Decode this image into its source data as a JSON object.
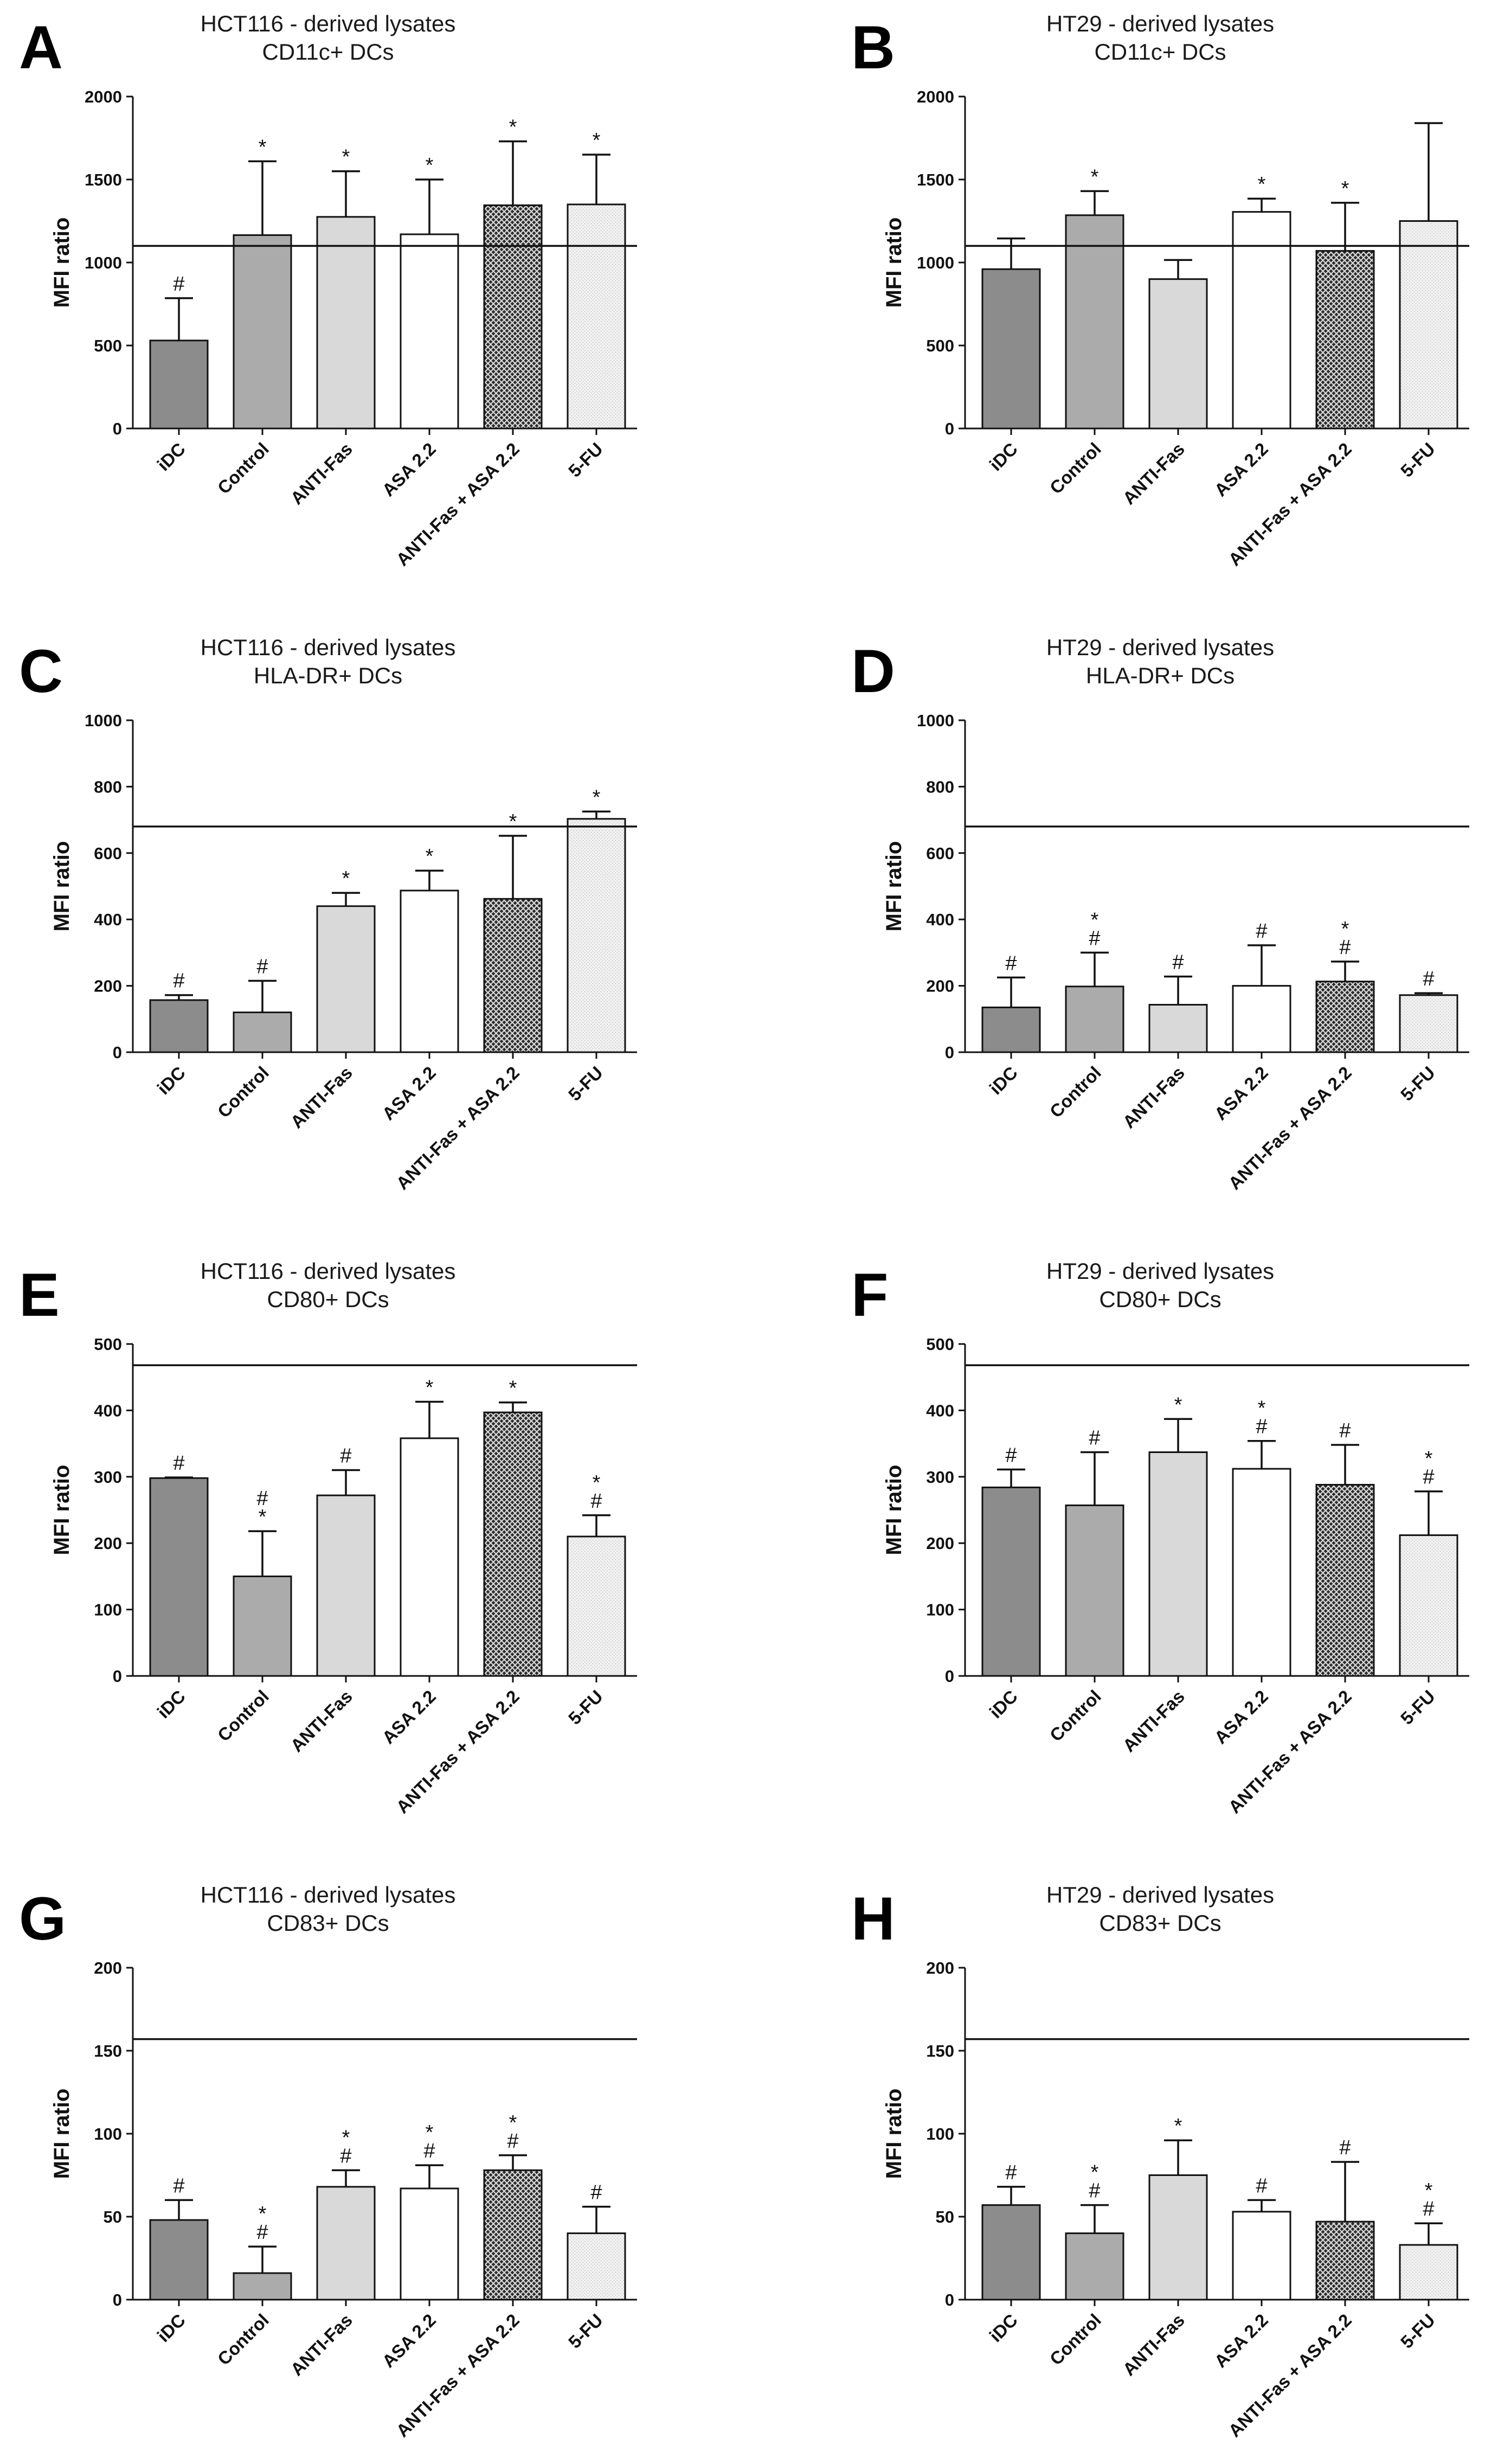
{
  "colors": {
    "idc": "#8c8c8c",
    "control": "#ababab",
    "antifas": "#d9d9d9",
    "asa": "#ffffff",
    "combo": "#1f1f1f",
    "fu": "#ececec",
    "axis": "#111111"
  },
  "chart_data": [
    {
      "panel": "A",
      "type": "bar",
      "title": "HCT116 - derived lysates",
      "subtitle": "CD11c+ DCs",
      "ylabel": "MFI ratio",
      "ylim": [
        0,
        2000
      ],
      "yticks": [
        0,
        500,
        1000,
        1500,
        2000
      ],
      "reference_line": 1100,
      "categories": [
        "iDC",
        "Control",
        "ANTI-Fas",
        "ASA  2.2",
        "ANTI-Fas + ASA 2.2",
        "5-FU"
      ],
      "values": [
        530,
        1165,
        1275,
        1170,
        1345,
        1350
      ],
      "errors": [
        255,
        445,
        275,
        330,
        385,
        300
      ],
      "marks": [
        [
          "#"
        ],
        [
          "*"
        ],
        [
          "*"
        ],
        [
          "*"
        ],
        [
          "*"
        ],
        [
          "*"
        ]
      ]
    },
    {
      "panel": "B",
      "type": "bar",
      "title": "HT29 - derived lysates",
      "subtitle": "CD11c+ DCs",
      "ylabel": "MFI ratio",
      "ylim": [
        0,
        2000
      ],
      "yticks": [
        0,
        500,
        1000,
        1500,
        2000
      ],
      "reference_line": 1100,
      "categories": [
        "iDC",
        "Control",
        "ANTI-Fas",
        "ASA  2.2",
        "ANTI-Fas + ASA 2.2",
        "5-FU"
      ],
      "values": [
        960,
        1285,
        900,
        1305,
        1070,
        1250
      ],
      "errors": [
        185,
        145,
        115,
        80,
        290,
        590
      ],
      "marks": [
        [],
        [
          "*"
        ],
        [],
        [
          "*"
        ],
        [
          "*"
        ],
        []
      ]
    },
    {
      "panel": "C",
      "type": "bar",
      "title": "HCT116 - derived lysates",
      "subtitle": "HLA-DR+ DCs",
      "ylabel": "MFI ratio",
      "ylim": [
        0,
        1000
      ],
      "yticks": [
        0,
        200,
        400,
        600,
        800,
        1000
      ],
      "reference_line": 680,
      "categories": [
        "iDC",
        "Control",
        "ANTI-Fas",
        "ASA  2.2",
        "ANTI-Fas + ASA 2.2",
        "5-FU"
      ],
      "values": [
        157,
        120,
        440,
        487,
        462,
        703
      ],
      "errors": [
        15,
        95,
        40,
        60,
        190,
        22
      ],
      "marks": [
        [
          "#"
        ],
        [
          "#"
        ],
        [
          "*"
        ],
        [
          "*"
        ],
        [
          "*"
        ],
        [
          "*"
        ]
      ]
    },
    {
      "panel": "D",
      "type": "bar",
      "title": "HT29 - derived lysates",
      "subtitle": "HLA-DR+ DCs",
      "ylabel": "MFI ratio",
      "ylim": [
        0,
        1000
      ],
      "yticks": [
        0,
        200,
        400,
        600,
        800,
        1000
      ],
      "reference_line": 680,
      "categories": [
        "iDC",
        "Control",
        "ANTI-Fas",
        "ASA  2.2",
        "ANTI-Fas + ASA 2.2",
        "5-FU"
      ],
      "values": [
        135,
        198,
        143,
        200,
        213,
        172
      ],
      "errors": [
        90,
        102,
        85,
        122,
        60,
        6
      ],
      "marks": [
        [
          "#"
        ],
        [
          "*",
          "#"
        ],
        [
          "#"
        ],
        [
          "#"
        ],
        [
          "*",
          "#"
        ],
        [
          "#"
        ]
      ]
    },
    {
      "panel": "E",
      "type": "bar",
      "title": "HCT116 - derived lysates",
      "subtitle": "CD80+ DCs",
      "ylabel": "MFI ratio",
      "ylim": [
        0,
        500
      ],
      "yticks": [
        0,
        100,
        200,
        300,
        400,
        500
      ],
      "reference_line": 468,
      "categories": [
        "iDC",
        "Control",
        "ANTI-Fas",
        "ASA  2.2",
        "ANTI-Fas + ASA 2.2",
        "5-FU"
      ],
      "values": [
        298,
        150,
        272,
        358,
        397,
        210
      ],
      "errors": [
        1,
        68,
        38,
        55,
        15,
        32
      ],
      "marks": [
        [
          "#"
        ],
        [
          "#",
          "*"
        ],
        [
          "#"
        ],
        [
          "*"
        ],
        [
          "*"
        ],
        [
          "*",
          "#"
        ]
      ]
    },
    {
      "panel": "F",
      "type": "bar",
      "title": "HT29 - derived lysates",
      "subtitle": "CD80+ DCs",
      "ylabel": "MFI ratio",
      "ylim": [
        0,
        500
      ],
      "yticks": [
        0,
        100,
        200,
        300,
        400,
        500
      ],
      "reference_line": 468,
      "categories": [
        "iDC",
        "Control",
        "ANTI-Fas",
        "ASA  2.2",
        "ANTI-Fas + ASA 2.2",
        "5-FU"
      ],
      "values": [
        284,
        257,
        337,
        312,
        288,
        212
      ],
      "errors": [
        27,
        80,
        50,
        42,
        60,
        66
      ],
      "marks": [
        [
          "#"
        ],
        [
          "#"
        ],
        [
          "*"
        ],
        [
          "*",
          "#"
        ],
        [
          "#"
        ],
        [
          "*",
          "#"
        ]
      ]
    },
    {
      "panel": "G",
      "type": "bar",
      "title": "HCT116 - derived lysates",
      "subtitle": "CD83+ DCs",
      "ylabel": "MFI ratio",
      "ylim": [
        0,
        200
      ],
      "yticks": [
        0,
        50,
        100,
        150,
        200
      ],
      "reference_line": 157,
      "categories": [
        "iDC",
        "Control",
        "ANTI-Fas",
        "ASA  2.2",
        "ANTI-Fas + ASA 2.2",
        "5-FU"
      ],
      "values": [
        48,
        16,
        68,
        67,
        78,
        40
      ],
      "errors": [
        12,
        16,
        10,
        14,
        9,
        16
      ],
      "marks": [
        [
          "#"
        ],
        [
          "*",
          "#"
        ],
        [
          "*",
          "#"
        ],
        [
          "*",
          "#"
        ],
        [
          "*",
          "#"
        ],
        [
          "#"
        ]
      ]
    },
    {
      "panel": "H",
      "type": "bar",
      "title": "HT29 - derived lysates",
      "subtitle": "CD83+ DCs",
      "ylabel": "MFI ratio",
      "ylim": [
        0,
        200
      ],
      "yticks": [
        0,
        50,
        100,
        150,
        200
      ],
      "reference_line": 157,
      "categories": [
        "iDC",
        "Control",
        "ANTI-Fas",
        "ASA  2.2",
        "ANTI-Fas + ASA 2.2",
        "5-FU"
      ],
      "values": [
        57,
        40,
        75,
        53,
        47,
        33
      ],
      "errors": [
        11,
        17,
        21,
        7,
        36,
        13
      ],
      "marks": [
        [
          "#"
        ],
        [
          "*",
          "#"
        ],
        [
          "*"
        ],
        [
          "#"
        ],
        [
          "#"
        ],
        [
          "*",
          "#"
        ]
      ]
    }
  ]
}
